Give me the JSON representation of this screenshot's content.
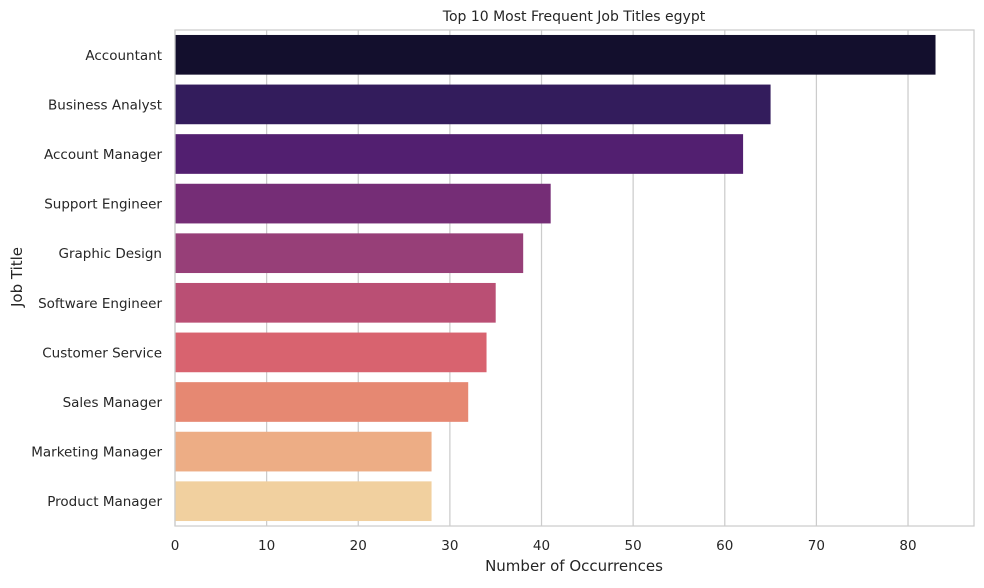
{
  "chart_data": {
    "type": "bar",
    "orientation": "horizontal",
    "title": "Top 10 Most Frequent Job Titles egypt",
    "xlabel": "Number of Occurrences",
    "ylabel": "Job Title",
    "categories": [
      "Accountant",
      "Business Analyst",
      "Account Manager",
      "Support Engineer",
      "Graphic Design",
      "Software Engineer",
      "Customer Service",
      "Sales Manager",
      "Marketing Manager",
      "Product Manager"
    ],
    "values": [
      83,
      65,
      62,
      41,
      38,
      35,
      34,
      32,
      28,
      28
    ],
    "colors": [
      "#130f2d",
      "#331c5c",
      "#521f70",
      "#752d76",
      "#973f78",
      "#ba4f74",
      "#d8636f",
      "#e68872",
      "#edad85",
      "#f1d09f"
    ],
    "xlim": [
      0,
      87.2
    ],
    "xticks": [
      0,
      10,
      20,
      30,
      40,
      50,
      60,
      70,
      80
    ],
    "grid": "vertical",
    "axis_color": "#cccccc",
    "grid_color": "#cccccc"
  }
}
